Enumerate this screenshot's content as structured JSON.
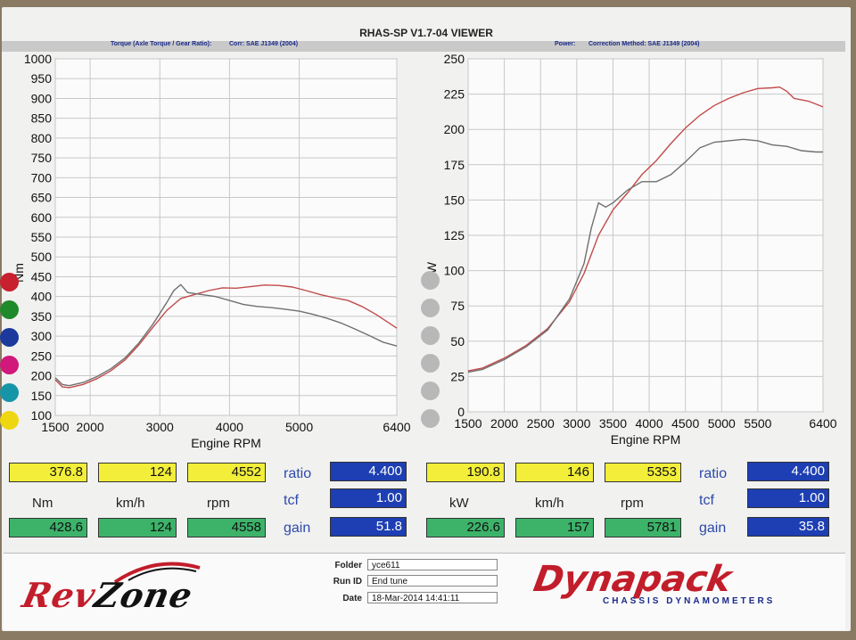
{
  "header": {
    "title": "RHAS-SP V1.7-04  VIEWER",
    "left_sub_a": "Torque (Axle Torque / Gear Ratio):",
    "left_sub_b": "Corr: SAE J1349 (2004)",
    "right_sub_a": "Power:",
    "right_sub_b": "Correction Method: SAE J1349 (2004)"
  },
  "colors": {
    "run1": "#c24b4b",
    "run2": "#707070"
  },
  "series_dots": [
    "#c8202e",
    "#1f8a2a",
    "#1c3a9c",
    "#d0197a",
    "#1795a8",
    "#eed610"
  ],
  "chart_data": [
    {
      "type": "line",
      "title": "",
      "xlabel": "Engine RPM",
      "ylabel": "Nm",
      "xlim": [
        1500,
        6400
      ],
      "ylim": [
        100,
        1000
      ],
      "xticks": [
        1500,
        2000,
        3000,
        4000,
        5000,
        6400
      ],
      "yticks": [
        100,
        150,
        200,
        250,
        300,
        350,
        400,
        450,
        500,
        550,
        600,
        650,
        700,
        750,
        800,
        850,
        900,
        950,
        1000
      ],
      "grid": true,
      "series": [
        {
          "color": "#c24b4b",
          "x": [
            1500,
            1600,
            1700,
            1900,
            2100,
            2300,
            2500,
            2700,
            2900,
            3100,
            3300,
            3500,
            3700,
            3900,
            4100,
            4300,
            4500,
            4700,
            4900,
            5100,
            5300,
            5500,
            5700,
            5900,
            6100,
            6300,
            6400
          ],
          "y": [
            190,
            172,
            170,
            178,
            193,
            213,
            240,
            278,
            322,
            365,
            395,
            405,
            415,
            422,
            421,
            425,
            429,
            428,
            424,
            415,
            405,
            397,
            390,
            375,
            355,
            332,
            320
          ]
        },
        {
          "color": "#707070",
          "x": [
            1500,
            1600,
            1700,
            1900,
            2100,
            2300,
            2500,
            2700,
            2900,
            3100,
            3200,
            3300,
            3400,
            3600,
            3800,
            4000,
            4200,
            4400,
            4600,
            4800,
            5000,
            5200,
            5400,
            5600,
            5800,
            6000,
            6200,
            6400
          ],
          "y": [
            195,
            178,
            175,
            183,
            198,
            218,
            245,
            283,
            330,
            385,
            415,
            430,
            410,
            405,
            400,
            390,
            380,
            375,
            372,
            368,
            363,
            355,
            345,
            333,
            318,
            302,
            285,
            275
          ]
        }
      ]
    },
    {
      "type": "line",
      "title": "",
      "xlabel": "Engine RPM",
      "ylabel": "kW",
      "xlim": [
        1500,
        6400
      ],
      "ylim": [
        0,
        250
      ],
      "xticks": [
        1500,
        2000,
        2500,
        3000,
        3500,
        4000,
        4500,
        5000,
        5500,
        6400
      ],
      "yticks": [
        0,
        25,
        50,
        75,
        100,
        125,
        150,
        175,
        200,
        225,
        250
      ],
      "grid": true,
      "series": [
        {
          "color": "#c24b4b",
          "x": [
            1500,
            1700,
            2000,
            2300,
            2600,
            2900,
            3100,
            3300,
            3500,
            3700,
            3900,
            4100,
            4300,
            4500,
            4700,
            4900,
            5100,
            5300,
            5500,
            5700,
            5800,
            5900,
            6000,
            6200,
            6400
          ],
          "y": [
            29,
            31,
            38,
            47,
            59,
            78,
            98,
            125,
            143,
            155,
            168,
            178,
            190,
            201,
            210,
            217,
            222,
            226,
            229,
            229.5,
            230,
            227,
            222,
            220,
            216
          ]
        },
        {
          "color": "#707070",
          "x": [
            1500,
            1700,
            2000,
            2300,
            2600,
            2900,
            3100,
            3200,
            3300,
            3400,
            3500,
            3700,
            3900,
            4100,
            4300,
            4500,
            4700,
            4900,
            5100,
            5300,
            5500,
            5700,
            5900,
            6100,
            6300,
            6400
          ],
          "y": [
            28,
            30,
            37,
            46,
            58,
            80,
            105,
            130,
            148,
            145,
            148,
            157,
            163,
            163,
            168,
            177,
            187,
            191,
            192,
            193,
            192,
            189,
            188,
            185,
            184,
            184
          ]
        }
      ]
    }
  ],
  "left_panel": {
    "row1": [
      "376.8",
      "124",
      "4552"
    ],
    "units": [
      "Nm",
      "km/h",
      "rpm"
    ],
    "row3": [
      "428.6",
      "124",
      "4558"
    ],
    "ratio_label": "ratio",
    "ratio_value": "4.400",
    "tcf_label": "tcf",
    "tcf_value": "1.00",
    "gain_label": "gain",
    "gain_value": "51.8"
  },
  "right_panel": {
    "row1": [
      "190.8",
      "146",
      "5353"
    ],
    "units": [
      "kW",
      "km/h",
      "rpm"
    ],
    "row3": [
      "226.6",
      "157",
      "5781"
    ],
    "ratio_label": "ratio",
    "ratio_value": "4.400",
    "tcf_label": "tcf",
    "tcf_value": "1.00",
    "gain_label": "gain",
    "gain_value": "35.8"
  },
  "info": {
    "folder_label": "Folder",
    "folder_value": "yce611",
    "runid_label": "Run ID",
    "runid_value": "End tune",
    "date_label": "Date",
    "date_value": "18-Mar-2014  14:41:11"
  },
  "logos": {
    "revzone_a": "Rev",
    "revzone_b": "Zone",
    "dynapack": "Dynapack",
    "dynapack_sub": "CHASSIS   DYNAMOMETERS"
  }
}
